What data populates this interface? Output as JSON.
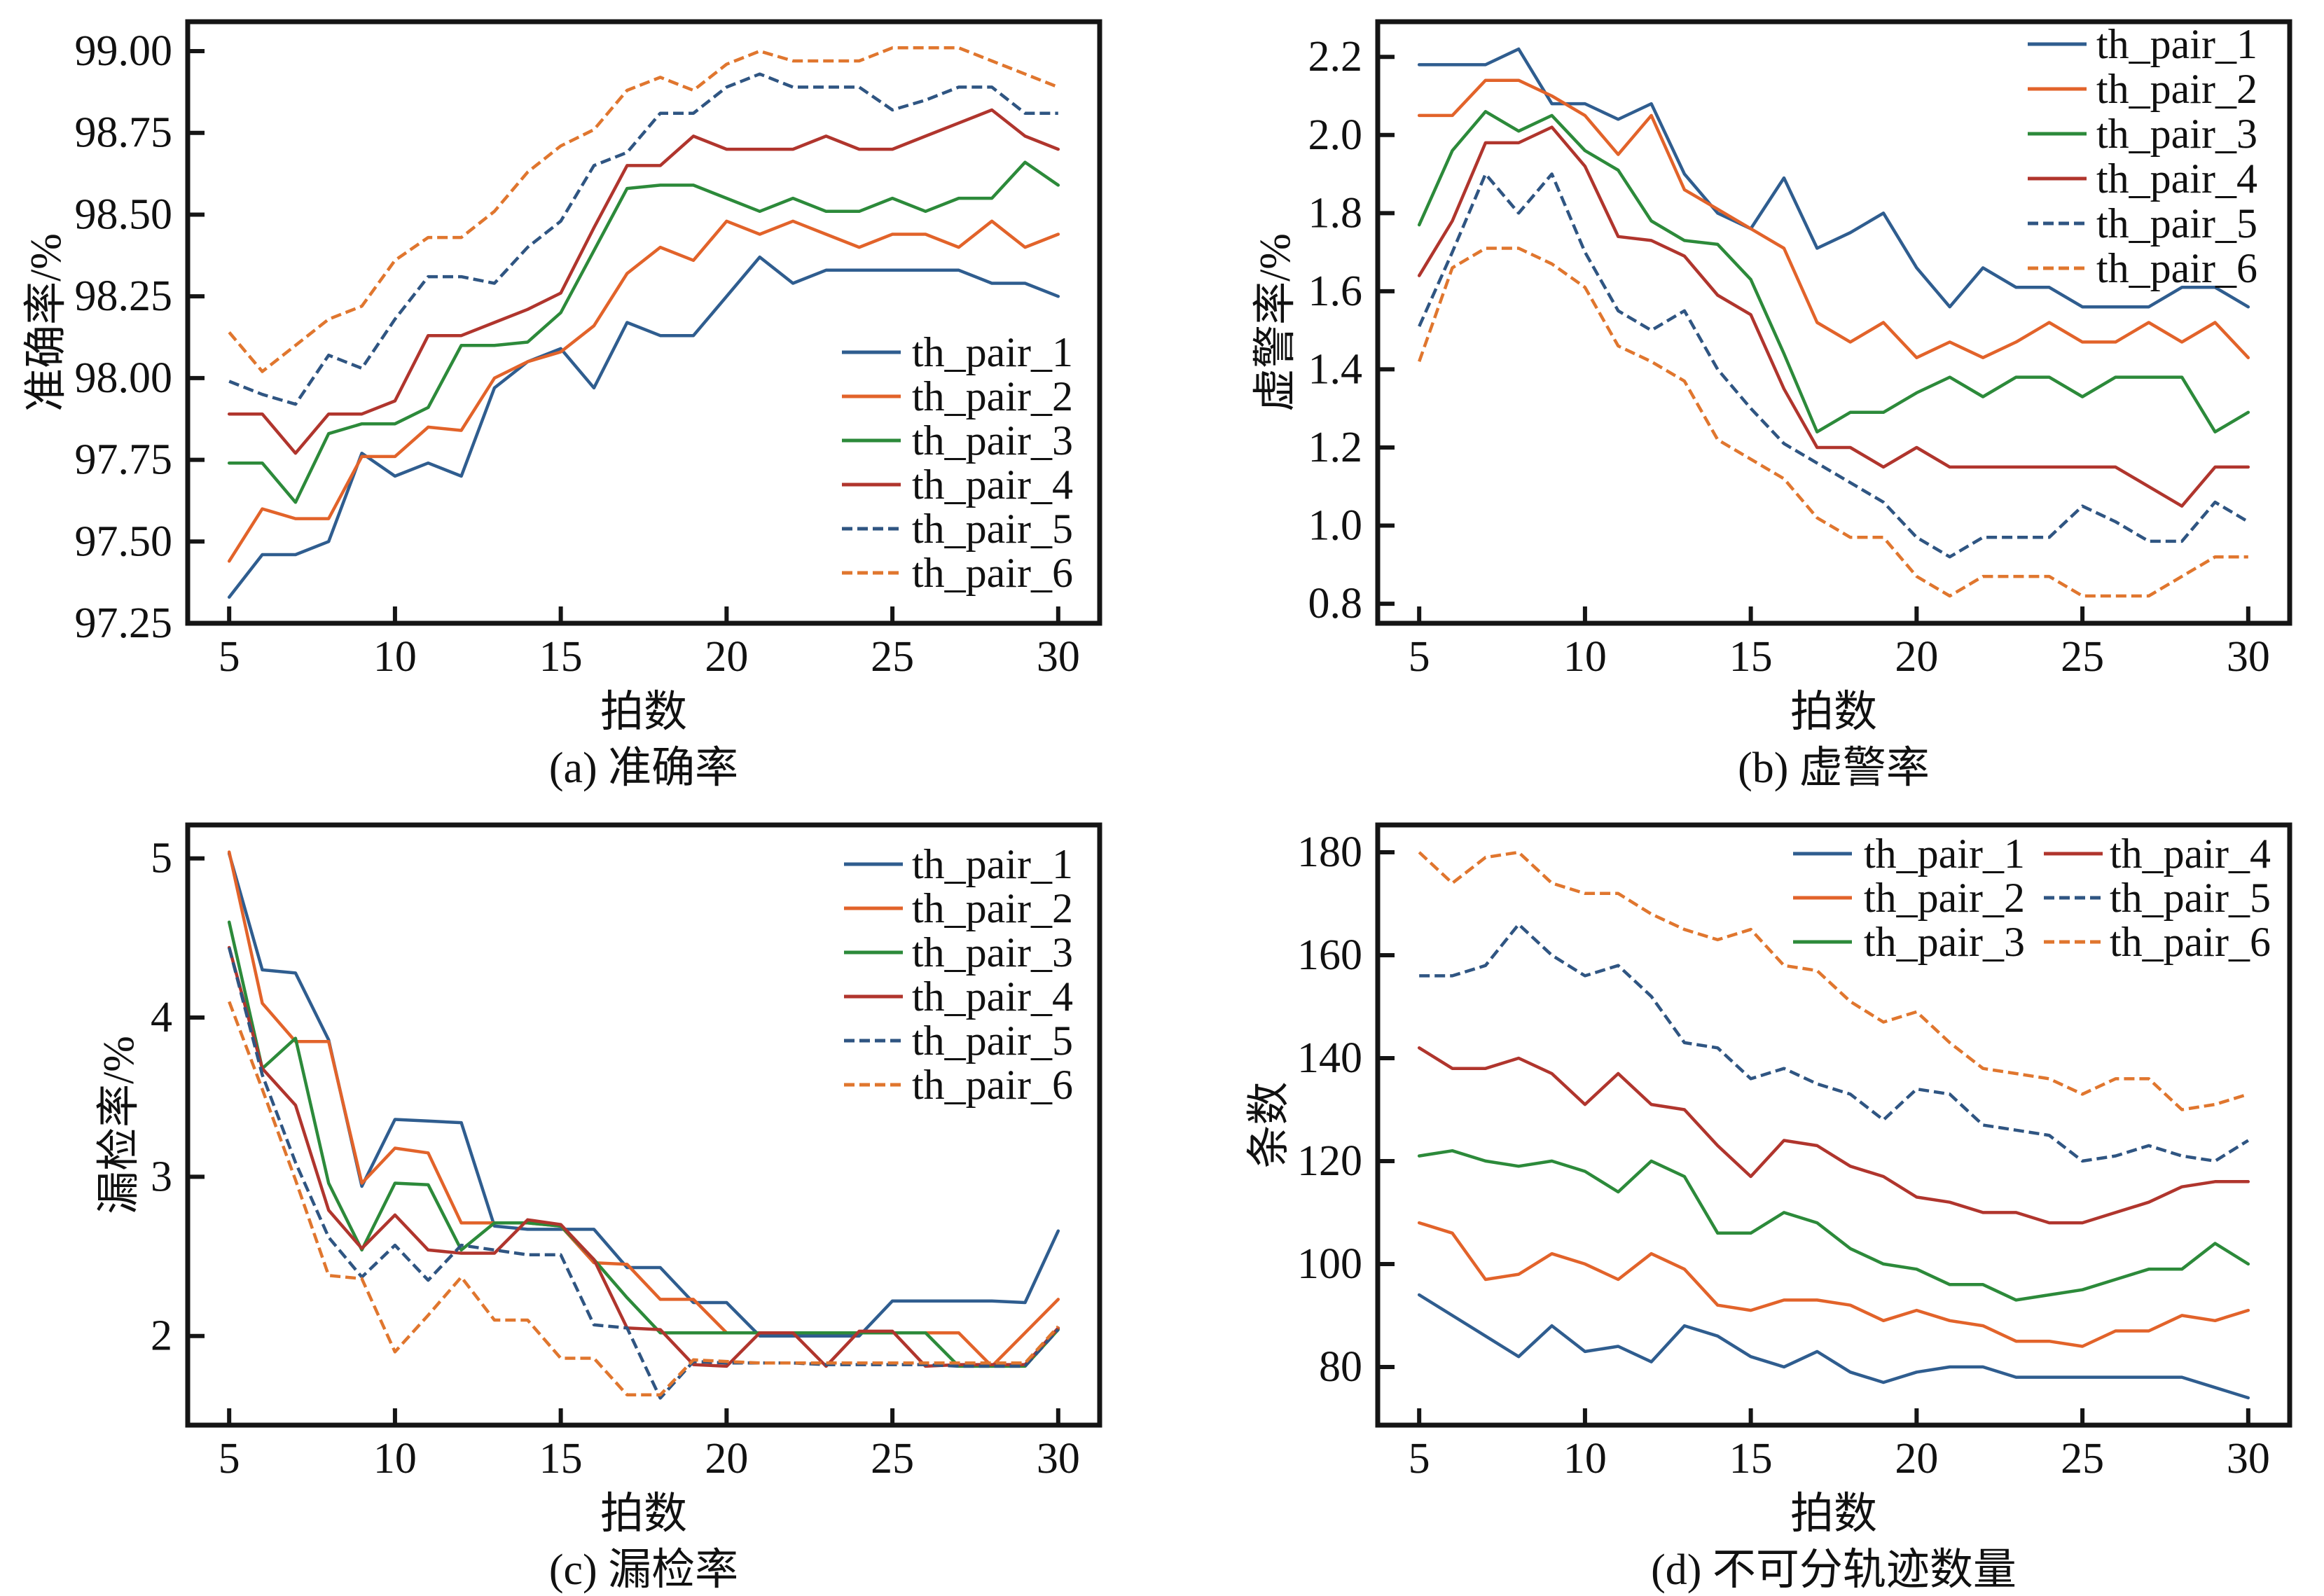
{
  "chart_data": [
    {
      "panel": "a",
      "type": "line",
      "title": "",
      "caption": "(a) 准确率",
      "xlabel": "拍数",
      "ylabel": "准确率/%",
      "grid": false,
      "x": [
        5,
        6,
        7,
        8,
        9,
        10,
        11,
        12,
        13,
        14,
        15,
        16,
        17,
        18,
        19,
        20,
        21,
        22,
        23,
        24,
        25,
        26,
        27,
        28,
        29,
        30
      ],
      "xlim": [
        3.75,
        31.25
      ],
      "ylim": [
        97.25,
        99.09
      ],
      "xticks": {
        "values": [
          5,
          10,
          15,
          20,
          25,
          30
        ],
        "labels": [
          "5",
          "10",
          "15",
          "20",
          "25",
          "30"
        ]
      },
      "yticks": {
        "values": [
          97.25,
          97.5,
          97.75,
          98.0,
          98.25,
          98.5,
          98.75,
          99.0
        ],
        "labels": [
          "97.25",
          "97.50",
          "97.75",
          "98.00",
          "98.25",
          "98.50",
          "98.75",
          "99.00"
        ]
      },
      "legend": {
        "placement": "lower-right",
        "columns": 1
      },
      "series": [
        {
          "name": "th_pair_1",
          "color": "#2f5d8f",
          "style": "solid",
          "values": [
            97.33,
            97.46,
            97.46,
            97.5,
            97.77,
            97.7,
            97.74,
            97.7,
            97.97,
            98.05,
            98.09,
            97.97,
            98.17,
            98.13,
            98.13,
            98.25,
            98.37,
            98.29,
            98.33,
            98.33,
            98.33,
            98.33,
            98.33,
            98.29,
            98.29,
            98.25
          ]
        },
        {
          "name": "th_pair_2",
          "color": "#e2632a",
          "style": "solid",
          "values": [
            97.44,
            97.6,
            97.57,
            97.57,
            97.76,
            97.76,
            97.85,
            97.84,
            98.0,
            98.05,
            98.08,
            98.16,
            98.32,
            98.4,
            98.36,
            98.48,
            98.44,
            98.48,
            98.44,
            98.4,
            98.44,
            98.44,
            98.4,
            98.48,
            98.4,
            98.44
          ]
        },
        {
          "name": "th_pair_3",
          "color": "#2c8a3a",
          "style": "solid",
          "values": [
            97.74,
            97.74,
            97.62,
            97.83,
            97.86,
            97.86,
            97.91,
            98.1,
            98.1,
            98.11,
            98.2,
            98.39,
            98.58,
            98.59,
            98.59,
            98.55,
            98.51,
            98.55,
            98.51,
            98.51,
            98.55,
            98.51,
            98.55,
            98.55,
            98.66,
            98.59
          ]
        },
        {
          "name": "th_pair_4",
          "color": "#b0352d",
          "style": "solid",
          "values": [
            97.89,
            97.89,
            97.77,
            97.89,
            97.89,
            97.93,
            98.13,
            98.13,
            98.17,
            98.21,
            98.26,
            98.46,
            98.65,
            98.65,
            98.74,
            98.7,
            98.7,
            98.7,
            98.74,
            98.7,
            98.7,
            98.74,
            98.78,
            98.82,
            98.74,
            98.7
          ]
        },
        {
          "name": "th_pair_5",
          "color": "#2f5582",
          "style": "dashed",
          "values": [
            97.99,
            97.95,
            97.92,
            98.07,
            98.03,
            98.18,
            98.31,
            98.31,
            98.29,
            98.4,
            98.48,
            98.65,
            98.69,
            98.81,
            98.81,
            98.89,
            98.93,
            98.89,
            98.89,
            98.89,
            98.82,
            98.85,
            98.89,
            98.89,
            98.81,
            98.81
          ]
        },
        {
          "name": "th_pair_6",
          "color": "#e0762e",
          "style": "dashed",
          "values": [
            98.14,
            98.02,
            98.1,
            98.18,
            98.22,
            98.36,
            98.43,
            98.43,
            98.51,
            98.63,
            98.71,
            98.76,
            98.88,
            98.92,
            98.88,
            98.96,
            99.0,
            98.97,
            98.97,
            98.97,
            99.01,
            99.01,
            99.01,
            98.97,
            98.93,
            98.89
          ]
        }
      ]
    },
    {
      "panel": "b",
      "type": "line",
      "title": "",
      "caption": "(b) 虚警率",
      "xlabel": "拍数",
      "ylabel": "虚警率/%",
      "grid": false,
      "x": [
        5,
        6,
        7,
        8,
        9,
        10,
        11,
        12,
        13,
        14,
        15,
        16,
        17,
        18,
        19,
        20,
        21,
        22,
        23,
        24,
        25,
        26,
        27,
        28,
        29,
        30
      ],
      "xlim": [
        3.75,
        31.25
      ],
      "ylim": [
        0.75,
        2.29
      ],
      "xticks": {
        "values": [
          5,
          10,
          15,
          20,
          25,
          30
        ],
        "labels": [
          "5",
          "10",
          "15",
          "20",
          "25",
          "30"
        ]
      },
      "yticks": {
        "values": [
          0.8,
          1.0,
          1.2,
          1.4,
          1.6,
          1.8,
          2.0,
          2.2
        ],
        "labels": [
          "0.8",
          "1.0",
          "1.2",
          "1.4",
          "1.6",
          "1.8",
          "2.0",
          "2.2"
        ]
      },
      "legend": {
        "placement": "upper-right",
        "columns": 1
      },
      "series": [
        {
          "name": "th_pair_1",
          "color": "#2f5d8f",
          "style": "solid",
          "values": [
            2.18,
            2.18,
            2.18,
            2.22,
            2.08,
            2.08,
            2.04,
            2.08,
            1.9,
            1.8,
            1.76,
            1.89,
            1.71,
            1.75,
            1.8,
            1.66,
            1.56,
            1.66,
            1.61,
            1.61,
            1.56,
            1.56,
            1.56,
            1.61,
            1.61,
            1.56
          ]
        },
        {
          "name": "th_pair_2",
          "color": "#e2632a",
          "style": "solid",
          "values": [
            2.05,
            2.05,
            2.14,
            2.14,
            2.1,
            2.05,
            1.95,
            2.05,
            1.86,
            1.81,
            1.76,
            1.71,
            1.52,
            1.47,
            1.52,
            1.43,
            1.47,
            1.43,
            1.47,
            1.52,
            1.47,
            1.47,
            1.52,
            1.47,
            1.52,
            1.43
          ]
        },
        {
          "name": "th_pair_3",
          "color": "#2c8a3a",
          "style": "solid",
          "values": [
            1.77,
            1.96,
            2.06,
            2.01,
            2.05,
            1.96,
            1.91,
            1.78,
            1.73,
            1.72,
            1.63,
            1.44,
            1.24,
            1.29,
            1.29,
            1.34,
            1.38,
            1.33,
            1.38,
            1.38,
            1.33,
            1.38,
            1.38,
            1.38,
            1.24,
            1.29
          ]
        },
        {
          "name": "th_pair_4",
          "color": "#b0352d",
          "style": "solid",
          "values": [
            1.64,
            1.78,
            1.98,
            1.98,
            2.02,
            1.92,
            1.74,
            1.73,
            1.69,
            1.59,
            1.54,
            1.35,
            1.2,
            1.2,
            1.15,
            1.2,
            1.15,
            1.15,
            1.15,
            1.15,
            1.15,
            1.15,
            1.1,
            1.05,
            1.15,
            1.15
          ]
        },
        {
          "name": "th_pair_5",
          "color": "#2f5582",
          "style": "dashed",
          "values": [
            1.51,
            1.7,
            1.9,
            1.8,
            1.9,
            1.7,
            1.55,
            1.5,
            1.55,
            1.4,
            1.3,
            1.21,
            1.16,
            1.11,
            1.06,
            0.97,
            0.92,
            0.97,
            0.97,
            0.97,
            1.05,
            1.01,
            0.96,
            0.96,
            1.06,
            1.01
          ]
        },
        {
          "name": "th_pair_6",
          "color": "#e0762e",
          "style": "dashed",
          "values": [
            1.42,
            1.66,
            1.71,
            1.71,
            1.67,
            1.61,
            1.46,
            1.42,
            1.37,
            1.22,
            1.17,
            1.12,
            1.02,
            0.97,
            0.97,
            0.87,
            0.82,
            0.87,
            0.87,
            0.87,
            0.82,
            0.82,
            0.82,
            0.87,
            0.92,
            0.92
          ]
        }
      ]
    },
    {
      "panel": "c",
      "type": "line",
      "title": "",
      "caption": "(c) 漏检率",
      "xlabel": "拍数",
      "ylabel": "漏检率/%",
      "grid": false,
      "x": [
        5,
        6,
        7,
        8,
        9,
        10,
        11,
        12,
        13,
        14,
        15,
        16,
        17,
        18,
        19,
        20,
        21,
        22,
        23,
        24,
        25,
        26,
        27,
        28,
        29,
        30
      ],
      "xlim": [
        3.75,
        31.25
      ],
      "ylim": [
        1.44,
        5.21
      ],
      "xticks": {
        "values": [
          5,
          10,
          15,
          20,
          25,
          30
        ],
        "labels": [
          "5",
          "10",
          "15",
          "20",
          "25",
          "30"
        ]
      },
      "yticks": {
        "values": [
          2,
          3,
          4,
          5
        ],
        "labels": [
          "2",
          "3",
          "4",
          "5"
        ]
      },
      "legend": {
        "placement": "upper-right",
        "columns": 1
      },
      "series": [
        {
          "name": "th_pair_1",
          "color": "#2f5d8f",
          "style": "solid",
          "values": [
            5.03,
            4.3,
            4.28,
            3.86,
            2.94,
            3.36,
            3.35,
            3.34,
            2.69,
            2.67,
            2.67,
            2.67,
            2.43,
            2.43,
            2.21,
            2.21,
            2.0,
            2.0,
            2.0,
            2.0,
            2.22,
            2.22,
            2.22,
            2.22,
            2.21,
            2.66
          ]
        },
        {
          "name": "th_pair_2",
          "color": "#e2632a",
          "style": "solid",
          "values": [
            5.04,
            4.09,
            3.85,
            3.85,
            2.96,
            3.18,
            3.15,
            2.71,
            2.71,
            2.71,
            2.69,
            2.46,
            2.45,
            2.23,
            2.23,
            2.02,
            2.02,
            2.02,
            2.02,
            2.02,
            2.02,
            2.02,
            2.02,
            1.81,
            2.02,
            2.23
          ]
        },
        {
          "name": "th_pair_3",
          "color": "#2c8a3a",
          "style": "solid",
          "values": [
            4.6,
            3.68,
            3.87,
            2.96,
            2.54,
            2.96,
            2.95,
            2.54,
            2.71,
            2.71,
            2.69,
            2.48,
            2.24,
            2.02,
            2.02,
            2.02,
            2.02,
            2.02,
            2.02,
            2.02,
            2.02,
            2.02,
            1.81,
            1.81,
            1.81,
            2.04
          ]
        },
        {
          "name": "th_pair_4",
          "color": "#b0352d",
          "style": "solid",
          "values": [
            4.44,
            3.68,
            3.45,
            2.79,
            2.55,
            2.76,
            2.54,
            2.52,
            2.52,
            2.73,
            2.7,
            2.48,
            2.05,
            2.04,
            1.82,
            1.81,
            2.02,
            2.02,
            1.81,
            2.03,
            2.03,
            1.81,
            1.82,
            1.82,
            1.82,
            2.05
          ]
        },
        {
          "name": "th_pair_5",
          "color": "#2f5582",
          "style": "dashed",
          "values": [
            4.44,
            3.64,
            3.09,
            2.62,
            2.37,
            2.57,
            2.35,
            2.57,
            2.54,
            2.51,
            2.51,
            2.07,
            2.05,
            1.61,
            1.84,
            1.83,
            1.83,
            1.83,
            1.82,
            1.82,
            1.82,
            1.82,
            1.81,
            1.81,
            1.81,
            2.04
          ]
        },
        {
          "name": "th_pair_6",
          "color": "#e0762e",
          "style": "dashed",
          "values": [
            4.1,
            3.55,
            2.98,
            2.38,
            2.36,
            1.9,
            2.13,
            2.37,
            2.1,
            2.1,
            1.86,
            1.86,
            1.63,
            1.63,
            1.85,
            1.84,
            1.83,
            1.83,
            1.83,
            1.83,
            1.83,
            1.83,
            1.83,
            1.83,
            1.83,
            2.06
          ]
        }
      ]
    },
    {
      "panel": "d",
      "type": "line",
      "title": "",
      "caption": "(d) 不可分轨迹数量",
      "xlabel": "拍数",
      "ylabel": "条数",
      "grid": false,
      "x": [
        5,
        6,
        7,
        8,
        9,
        10,
        11,
        12,
        13,
        14,
        15,
        16,
        17,
        18,
        19,
        20,
        21,
        22,
        23,
        24,
        25,
        26,
        27,
        28,
        29,
        30
      ],
      "xlim": [
        3.75,
        31.25
      ],
      "ylim": [
        68.7,
        185.3
      ],
      "xticks": {
        "values": [
          5,
          10,
          15,
          20,
          25,
          30
        ],
        "labels": [
          "5",
          "10",
          "15",
          "20",
          "25",
          "30"
        ]
      },
      "yticks": {
        "values": [
          80,
          100,
          120,
          140,
          160,
          180
        ],
        "labels": [
          "80",
          "100",
          "120",
          "140",
          "160",
          "180"
        ]
      },
      "legend": {
        "placement": "upper-right",
        "columns": 2
      },
      "series": [
        {
          "name": "th_pair_1",
          "color": "#2f5d8f",
          "style": "solid",
          "values": [
            94,
            90,
            86,
            82,
            88,
            83,
            84,
            81,
            88,
            86,
            82,
            80,
            83,
            79,
            77,
            79,
            80,
            80,
            78,
            78,
            78,
            78,
            78,
            78,
            76,
            74
          ]
        },
        {
          "name": "th_pair_2",
          "color": "#e2632a",
          "style": "solid",
          "values": [
            108,
            106,
            97,
            98,
            102,
            100,
            97,
            102,
            99,
            92,
            91,
            93,
            93,
            92,
            89,
            91,
            89,
            88,
            85,
            85,
            84,
            87,
            87,
            90,
            89,
            91
          ]
        },
        {
          "name": "th_pair_3",
          "color": "#2c8a3a",
          "style": "solid",
          "values": [
            121,
            122,
            120,
            119,
            120,
            118,
            114,
            120,
            117,
            106,
            106,
            110,
            108,
            103,
            100,
            99,
            96,
            96,
            93,
            94,
            95,
            97,
            99,
            99,
            104,
            100
          ]
        },
        {
          "name": "th_pair_4",
          "color": "#b0352d",
          "style": "solid",
          "values": [
            142,
            138,
            138,
            140,
            137,
            131,
            137,
            131,
            130,
            123,
            117,
            124,
            123,
            119,
            117,
            113,
            112,
            110,
            110,
            108,
            108,
            110,
            112,
            115,
            116,
            116
          ]
        },
        {
          "name": "th_pair_5",
          "color": "#2f5582",
          "style": "dashed",
          "values": [
            156,
            156,
            158,
            166,
            160,
            156,
            158,
            152,
            143,
            142,
            136,
            138,
            135,
            133,
            128,
            134,
            133,
            127,
            126,
            125,
            120,
            121,
            123,
            121,
            120,
            124
          ]
        },
        {
          "name": "th_pair_6",
          "color": "#e0762e",
          "style": "dashed",
          "values": [
            180,
            174,
            179,
            180,
            174,
            172,
            172,
            168,
            165,
            163,
            165,
            158,
            157,
            151,
            147,
            149,
            143,
            138,
            137,
            136,
            133,
            136,
            136,
            130,
            131,
            133
          ]
        }
      ]
    }
  ]
}
